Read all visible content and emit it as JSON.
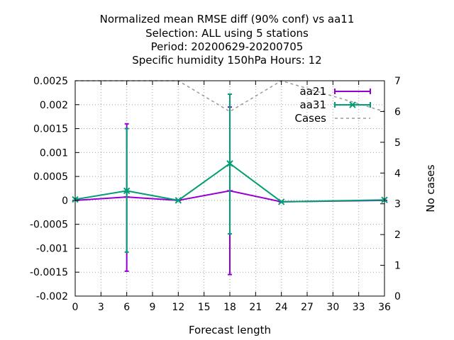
{
  "chart_data": {
    "type": "line",
    "title_lines": [
      "Normalized mean RMSE diff (90% conf) vs aa11",
      "Selection: ALL using     5 stations",
      "Period: 20200629-20200705",
      "Specific humidity 150hPa   Hours:  12"
    ],
    "xlabel": "Forecast length",
    "ylabel": "",
    "y2label": "No cases",
    "xlim": [
      0,
      36
    ],
    "ylim": [
      -0.002,
      0.0025
    ],
    "y2lim": [
      0,
      7
    ],
    "x_ticks": [
      0,
      3,
      6,
      9,
      12,
      15,
      18,
      21,
      24,
      27,
      30,
      33,
      36
    ],
    "y_ticks": [
      "0.0025",
      "0.002",
      "0.0015",
      "0.001",
      "0.0005",
      "0",
      "-0.0005",
      "-0.001",
      "-0.0015",
      "-0.002"
    ],
    "y2_ticks": [
      "7",
      "6",
      "5",
      "4",
      "3",
      "2",
      "1",
      "0"
    ],
    "grid": true,
    "legend_position": "top-right",
    "series": [
      {
        "name": "aa21",
        "color": "#9400d3",
        "axis": "y",
        "x": [
          0,
          6,
          12,
          18,
          24,
          36
        ],
        "y": [
          0.0,
          7e-05,
          0.0,
          0.0002,
          -3e-05,
          0.0
        ],
        "err_low": [
          0.0,
          -0.00148,
          0.0,
          -0.00155,
          -3e-05,
          0.0
        ],
        "err_high": [
          0.0,
          0.0016,
          0.0,
          0.00195,
          -3e-05,
          0.0
        ]
      },
      {
        "name": "aa31",
        "color": "#009e73",
        "axis": "y",
        "x": [
          0,
          6,
          12,
          18,
          24,
          36
        ],
        "y": [
          2e-05,
          0.0002,
          0.0,
          0.00077,
          -3e-05,
          1e-05
        ],
        "err_low": [
          2e-05,
          -0.00108,
          0.0,
          -0.0007,
          -3e-05,
          1e-05
        ],
        "err_high": [
          2e-05,
          0.0015,
          0.0,
          0.00222,
          -3e-05,
          1e-05
        ]
      },
      {
        "name": "Cases",
        "color": "#999999",
        "axis": "y2",
        "style": "dashed",
        "x": [
          0,
          6,
          12,
          18,
          24,
          36
        ],
        "y": [
          7,
          7,
          7,
          6,
          7,
          6
        ]
      }
    ]
  }
}
